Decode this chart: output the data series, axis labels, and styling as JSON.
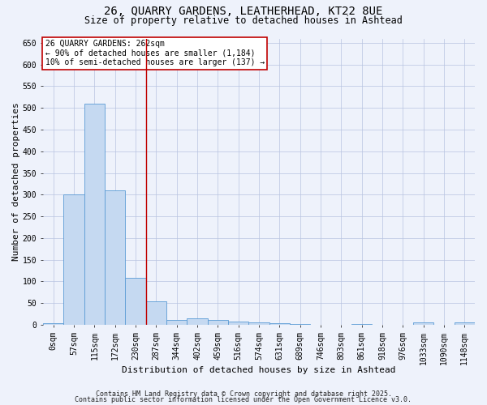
{
  "title_line1": "26, QUARRY GARDENS, LEATHERHEAD, KT22 8UE",
  "title_line2": "Size of property relative to detached houses in Ashtead",
  "xlabel": "Distribution of detached houses by size in Ashtead",
  "ylabel": "Number of detached properties",
  "bar_labels": [
    "0sqm",
    "57sqm",
    "115sqm",
    "172sqm",
    "230sqm",
    "287sqm",
    "344sqm",
    "402sqm",
    "459sqm",
    "516sqm",
    "574sqm",
    "631sqm",
    "689sqm",
    "746sqm",
    "803sqm",
    "861sqm",
    "918sqm",
    "976sqm",
    "1033sqm",
    "1090sqm",
    "1148sqm"
  ],
  "bar_values": [
    3,
    300,
    510,
    310,
    108,
    55,
    12,
    15,
    12,
    8,
    5,
    4,
    1,
    0,
    0,
    2,
    0,
    0,
    5,
    0,
    5
  ],
  "bar_color": "#c5d9f1",
  "bar_edge_color": "#5b9bd5",
  "annotation_text_line1": "26 QUARRY GARDENS: 262sqm",
  "annotation_text_line2": "← 90% of detached houses are smaller (1,184)",
  "annotation_text_line3": "10% of semi-detached houses are larger (137) →",
  "annotation_box_color": "#ffffff",
  "annotation_box_edge_color": "#c00000",
  "vline_color": "#c00000",
  "vline_x": 4.5,
  "ylim": [
    0,
    660
  ],
  "yticks": [
    0,
    50,
    100,
    150,
    200,
    250,
    300,
    350,
    400,
    450,
    500,
    550,
    600,
    650
  ],
  "background_color": "#eef2fb",
  "footer_line1": "Contains HM Land Registry data © Crown copyright and database right 2025.",
  "footer_line2": "Contains public sector information licensed under the Open Government Licence v3.0.",
  "title_fontsize": 10,
  "subtitle_fontsize": 8.5,
  "tick_fontsize": 7,
  "label_fontsize": 8,
  "footer_fontsize": 6,
  "annot_fontsize": 7
}
